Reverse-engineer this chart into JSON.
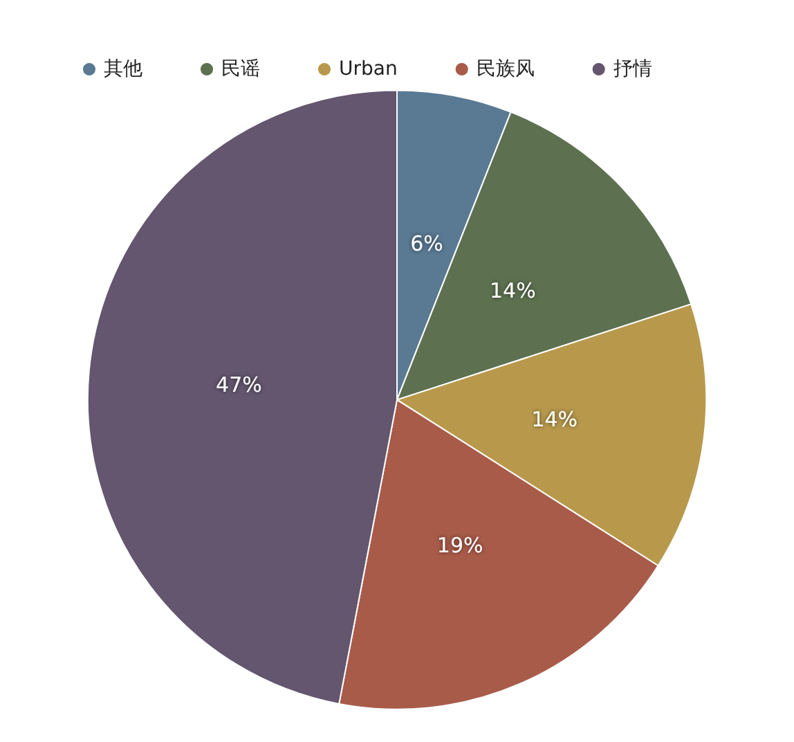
{
  "chart_data": {
    "type": "pie",
    "categories": [
      "其他",
      "民谣",
      "Urban",
      "民族风",
      "抒情"
    ],
    "values": [
      6,
      14,
      14,
      19,
      47
    ],
    "value_labels": [
      "6%",
      "14%",
      "14%",
      "19%",
      "47%"
    ],
    "colors": [
      "#5a7a93",
      "#5d7150",
      "#b8994c",
      "#a95b49",
      "#63566e"
    ],
    "legend": "top"
  }
}
